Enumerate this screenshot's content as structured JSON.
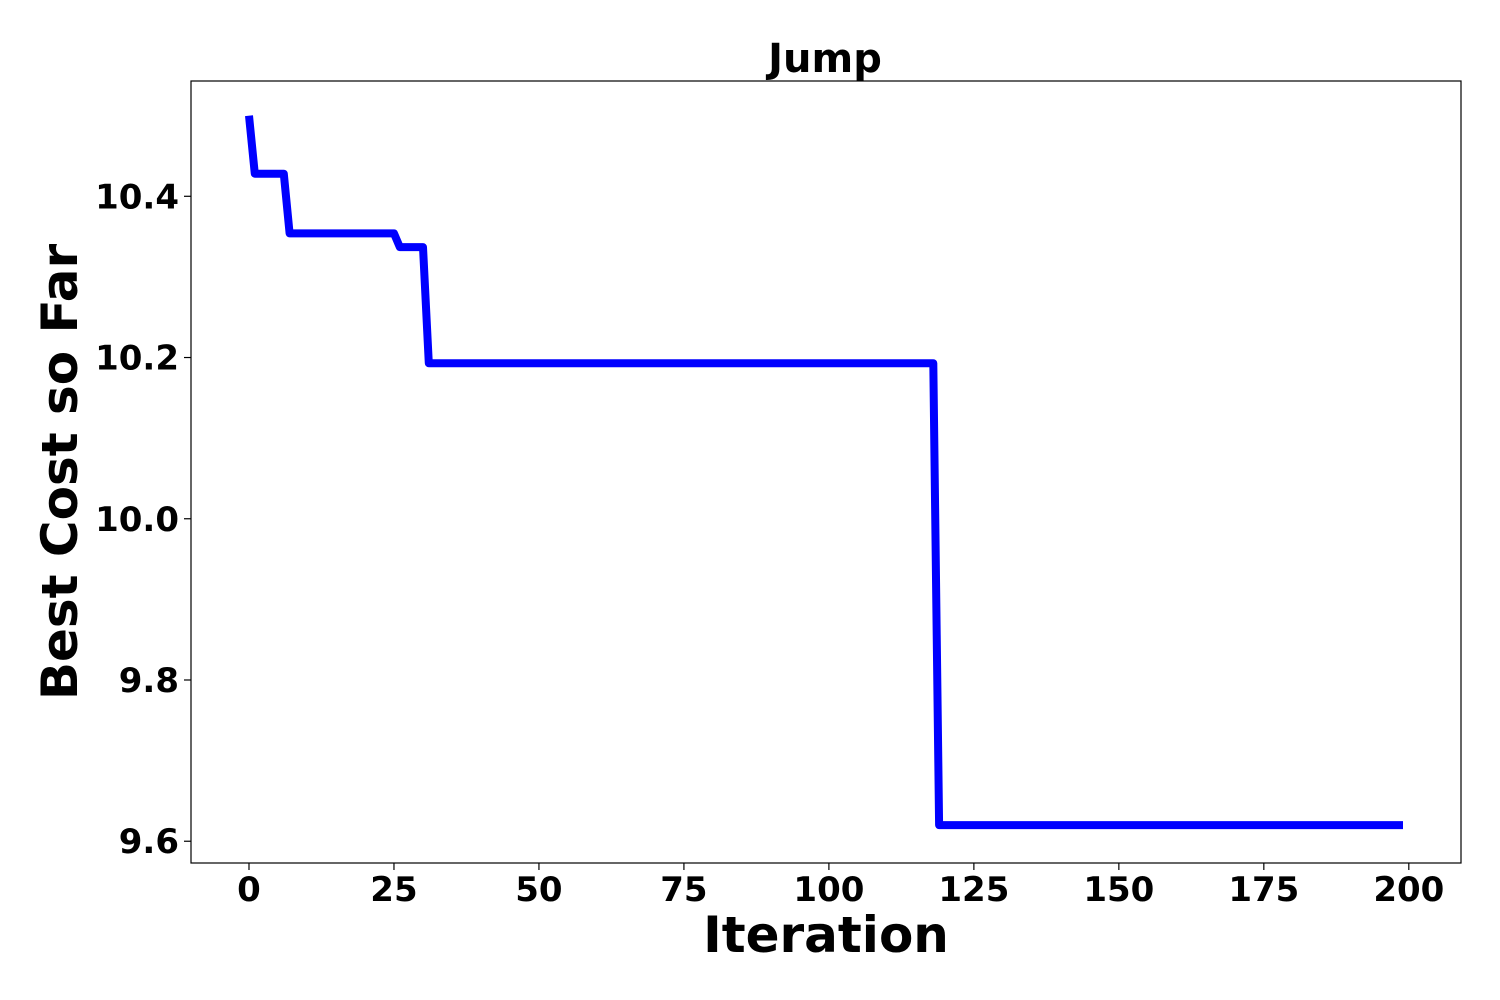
{
  "chart_data": {
    "type": "line",
    "title": "Jump",
    "xlabel": "Iteration",
    "ylabel": "Best Cost so Far",
    "xlim": [
      -10,
      209
    ],
    "ylim": [
      9.573,
      10.543
    ],
    "xticks": [
      0,
      25,
      50,
      75,
      100,
      125,
      150,
      175,
      200
    ],
    "xtick_labels": [
      "0",
      "25",
      "50",
      "75",
      "100",
      "125",
      "150",
      "175",
      "200"
    ],
    "yticks": [
      9.6,
      9.8,
      10.0,
      10.2,
      10.4
    ],
    "ytick_labels": [
      "9.6",
      "9.8",
      "10.0",
      "10.2",
      "10.4"
    ],
    "grid": false,
    "series": [
      {
        "color": "#0000ff",
        "x": [
          0,
          1,
          6,
          7,
          25,
          26,
          30,
          31,
          118,
          119,
          199
        ],
        "y": [
          10.5,
          10.428,
          10.428,
          10.354,
          10.354,
          10.337,
          10.337,
          10.193,
          10.193,
          9.62,
          9.62
        ]
      }
    ]
  }
}
